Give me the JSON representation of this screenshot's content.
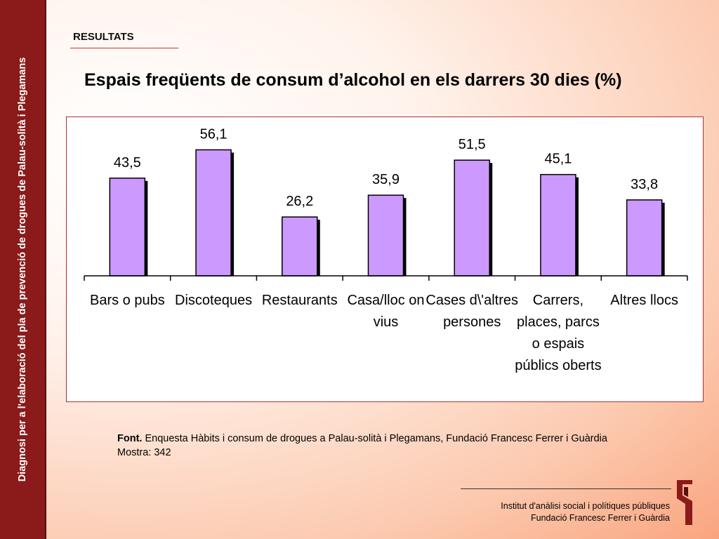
{
  "sidebar": {
    "text": "Diagnosi per a l'elaboració del pla de prevenció de drogues de Palau-solità i Plegamans"
  },
  "header": {
    "section": "RESULTATS",
    "title": "Espais freqüents de consum d’alcohol en els darrers 30 dies (%)"
  },
  "chart_data": {
    "type": "bar",
    "title": "",
    "xlabel": "",
    "ylabel": "",
    "categories": [
      "Bars o pubs",
      "Discoteques",
      "Restaurants",
      "Casa/lloc on vius",
      "Cases d\\'altres persones",
      "Carrers, places, parcs o espais públics oberts",
      "Altres llocs"
    ],
    "category_lines": [
      [
        "Bars o pubs"
      ],
      [
        "Discoteques"
      ],
      [
        "Restaurants"
      ],
      [
        "Casa/lloc on",
        "vius"
      ],
      [
        "Cases d\\'altres",
        "persones"
      ],
      [
        "Carrers,",
        "places, parcs",
        "o espais",
        "públics oberts"
      ],
      [
        "Altres llocs"
      ]
    ],
    "values": [
      43.5,
      56.1,
      26.2,
      35.9,
      51.5,
      45.1,
      33.8
    ],
    "value_labels": [
      "43,5",
      "56,1",
      "26,2",
      "35,9",
      "51,5",
      "45,1",
      "33,8"
    ],
    "ylim": [
      0,
      60
    ],
    "grid": false,
    "legend": "none",
    "colors": {
      "bar": "#cc99ff",
      "bar_border": "#000000",
      "bar_shadow": "#000000"
    }
  },
  "source": {
    "label": "Font.",
    "text": "Enquesta Hàbits i consum de drogues a Palau-solità i Plegamans, Fundació Francesc Ferrer i Guàrdia",
    "sample": "Mostra: 342"
  },
  "footer": {
    "line1": "Institut d'anàlisi social i polítiques públiques",
    "line2": "Fundació Francesc Ferrer i Guàrdia"
  },
  "logo": {
    "icon": "institute-logo-icon",
    "color": "#8b1a1a"
  }
}
